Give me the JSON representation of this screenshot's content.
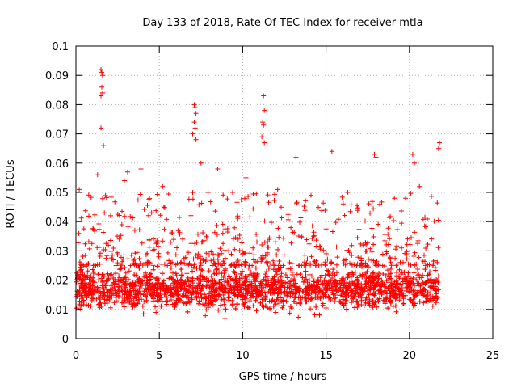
{
  "chart_data": {
    "type": "scatter",
    "title": "Day 133 of 2018, Rate Of TEC Index for receiver mtla",
    "xlabel": "GPS time / hours",
    "ylabel": "ROTI / TECUs",
    "xlim": [
      0,
      25
    ],
    "ylim": [
      0,
      0.1
    ],
    "xticks": [
      0,
      5,
      10,
      15,
      20,
      25
    ],
    "xtick_labels": [
      "0",
      "5",
      "10",
      "15",
      "20",
      "25"
    ],
    "yticks": [
      0,
      0.01,
      0.02,
      0.03,
      0.04,
      0.05,
      0.06,
      0.07,
      0.08,
      0.09,
      0.1
    ],
    "ytick_labels": [
      "0",
      "0.01",
      "0.02",
      "0.03",
      "0.04",
      "0.05",
      "0.06",
      "0.07",
      "0.08",
      "0.09",
      "0.1"
    ],
    "grid": true,
    "marker": "+",
    "marker_color": "#ff0000",
    "series": [
      {
        "name": "ROTI",
        "x_range": [
          0,
          21.75
        ],
        "notes": "dense cloud of samples, bulk between 0.005 and 0.03 TECU/s",
        "points": [
          [
            1.5,
            0.092
          ],
          [
            1.55,
            0.091
          ],
          [
            1.6,
            0.09
          ],
          [
            1.55,
            0.086
          ],
          [
            1.6,
            0.084
          ],
          [
            1.5,
            0.083
          ],
          [
            1.5,
            0.072
          ],
          [
            1.65,
            0.066
          ],
          [
            7.1,
            0.08
          ],
          [
            7.15,
            0.079
          ],
          [
            7.2,
            0.077
          ],
          [
            7.1,
            0.074
          ],
          [
            7.15,
            0.072
          ],
          [
            7.0,
            0.07
          ],
          [
            7.2,
            0.068
          ],
          [
            11.25,
            0.083
          ],
          [
            11.3,
            0.078
          ],
          [
            11.2,
            0.074
          ],
          [
            11.25,
            0.073
          ],
          [
            11.15,
            0.069
          ],
          [
            11.3,
            0.067
          ],
          [
            15.35,
            0.064
          ],
          [
            17.9,
            0.063
          ],
          [
            18.0,
            0.062
          ],
          [
            20.2,
            0.063
          ],
          [
            20.3,
            0.06
          ],
          [
            21.8,
            0.067
          ],
          [
            21.75,
            0.065
          ],
          [
            13.2,
            0.062
          ],
          [
            7.5,
            0.06
          ],
          [
            8.5,
            0.058
          ],
          [
            3.9,
            0.058
          ],
          [
            3.1,
            0.057
          ],
          [
            1.3,
            0.056
          ],
          [
            10.2,
            0.055
          ],
          [
            2.9,
            0.054
          ],
          [
            5.2,
            0.052
          ],
          [
            0.2,
            0.051
          ],
          [
            9.4,
            0.05
          ],
          [
            12.1,
            0.051
          ],
          [
            16.3,
            0.05
          ],
          [
            14.1,
            0.049
          ],
          [
            20.6,
            0.052
          ],
          [
            19.1,
            0.048
          ]
        ]
      }
    ]
  }
}
